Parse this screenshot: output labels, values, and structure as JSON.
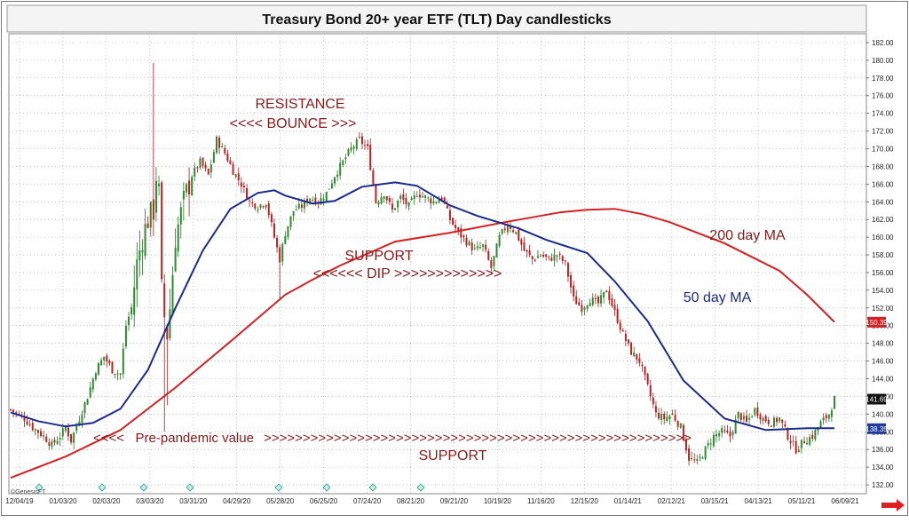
{
  "chart_data": {
    "type": "candlestick",
    "title": "Treasury Bond 20+ year ETF (TLT) Day candlesticks",
    "watermark": "©GenesisFT",
    "x_tick_labels": [
      "12/04/19",
      "01/03/20",
      "02/03/20",
      "03/03/20",
      "03/31/20",
      "04/29/20",
      "05/28/20",
      "06/25/20",
      "07/24/20",
      "08/21/20",
      "09/21/20",
      "10/19/20",
      "11/16/20",
      "12/15/20",
      "01/14/21",
      "02/12/21",
      "03/15/21",
      "04/13/21",
      "05/11/21",
      "06/09/21"
    ],
    "y_tick_labels": [
      "132.00",
      "134.00",
      "136.00",
      "138.00",
      "140.00",
      "142.00",
      "144.00",
      "146.00",
      "148.00",
      "150.00",
      "152.00",
      "154.00",
      "156.00",
      "158.00",
      "160.00",
      "162.00",
      "164.00",
      "166.00",
      "168.00",
      "170.00",
      "172.00",
      "174.00",
      "176.00",
      "178.00",
      "180.00",
      "182.00"
    ],
    "ylim": [
      131,
      183
    ],
    "grid": true,
    "price_markers": [
      {
        "label": "150.39",
        "value": 150.39,
        "color": "#d42020"
      },
      {
        "label": "141.69",
        "value": 141.69,
        "color": "#111111"
      },
      {
        "label": "138.35",
        "value": 138.35,
        "color": "#1f3a9a"
      }
    ],
    "price_path": [
      [
        0,
        140.5
      ],
      [
        5,
        139.5
      ],
      [
        8,
        138.5
      ],
      [
        12,
        137.5
      ],
      [
        15,
        136.5
      ],
      [
        18,
        137.5
      ],
      [
        20,
        138.5
      ],
      [
        22,
        137.0
      ],
      [
        25,
        139.5
      ],
      [
        28,
        142.0
      ],
      [
        31,
        145.0
      ],
      [
        34,
        146.5
      ],
      [
        37,
        145.0
      ],
      [
        40,
        144.5
      ],
      [
        42,
        150.0
      ],
      [
        44,
        152.0
      ],
      [
        46,
        157.0
      ],
      [
        48,
        160.0
      ],
      [
        50,
        162.0
      ],
      [
        52,
        163.0
      ],
      [
        53,
        167.0
      ],
      [
        54,
        165.0
      ],
      [
        55,
        154.0
      ],
      [
        56,
        151.0
      ],
      [
        57,
        149.0
      ],
      [
        58,
        152.0
      ],
      [
        60,
        160.0
      ],
      [
        63,
        164.0
      ],
      [
        66,
        167.0
      ],
      [
        69,
        168.5
      ],
      [
        72,
        167.0
      ],
      [
        75,
        171.0
      ],
      [
        78,
        169.5
      ],
      [
        81,
        167.5
      ],
      [
        84,
        166.0
      ],
      [
        87,
        164.0
      ],
      [
        90,
        163.5
      ],
      [
        93,
        164.0
      ],
      [
        96,
        160.0
      ],
      [
        98,
        157.5
      ],
      [
        100,
        160.5
      ],
      [
        103,
        163.0
      ],
      [
        106,
        163.5
      ],
      [
        109,
        164.5
      ],
      [
        112,
        164.0
      ],
      [
        115,
        165.0
      ],
      [
        118,
        167.0
      ],
      [
        121,
        168.5
      ],
      [
        124,
        170.0
      ],
      [
        127,
        171.0
      ],
      [
        130,
        170.0
      ],
      [
        133,
        164.0
      ],
      [
        136,
        165.0
      ],
      [
        139,
        163.0
      ],
      [
        142,
        164.5
      ],
      [
        145,
        163.5
      ],
      [
        148,
        165.0
      ],
      [
        151,
        164.5
      ],
      [
        154,
        164.0
      ],
      [
        157,
        164.5
      ],
      [
        160,
        162.0
      ],
      [
        163,
        160.5
      ],
      [
        166,
        159.5
      ],
      [
        169,
        158.5
      ],
      [
        172,
        159.0
      ],
      [
        175,
        156.5
      ],
      [
        178,
        160.0
      ],
      [
        181,
        161.5
      ],
      [
        184,
        160.5
      ],
      [
        187,
        158.5
      ],
      [
        190,
        157.5
      ],
      [
        193,
        158.0
      ],
      [
        196,
        157.5
      ],
      [
        199,
        158.0
      ],
      [
        202,
        157.0
      ],
      [
        205,
        153.0
      ],
      [
        208,
        152.0
      ],
      [
        211,
        153.0
      ],
      [
        214,
        152.5
      ],
      [
        217,
        154.0
      ],
      [
        220,
        151.5
      ],
      [
        223,
        149.0
      ],
      [
        226,
        147.0
      ],
      [
        229,
        146.0
      ],
      [
        232,
        143.0
      ],
      [
        235,
        140.0
      ],
      [
        238,
        139.5
      ],
      [
        241,
        140.0
      ],
      [
        244,
        138.5
      ],
      [
        247,
        135.0
      ],
      [
        250,
        134.5
      ],
      [
        253,
        136.0
      ],
      [
        256,
        137.5
      ],
      [
        259,
        138.0
      ],
      [
        262,
        137.5
      ],
      [
        265,
        140.0
      ],
      [
        268,
        139.0
      ],
      [
        271,
        140.5
      ],
      [
        274,
        139.5
      ],
      [
        277,
        139.0
      ],
      [
        280,
        139.5
      ],
      [
        283,
        137.5
      ],
      [
        286,
        136.0
      ],
      [
        289,
        137.0
      ],
      [
        292,
        137.5
      ],
      [
        295,
        139.0
      ],
      [
        298,
        140.0
      ],
      [
        300,
        141.7
      ]
    ],
    "annotations": [
      {
        "text": "RESISTANCE",
        "color": "#8b1a1a"
      },
      {
        "text": "<<<< BOUNCE >>>",
        "color": "#8b1a1a"
      },
      {
        "text": "SUPPORT",
        "color": "#8b1a1a"
      },
      {
        "text": "<<<<<< DIP >>>>>>>>>>>>>",
        "color": "#8b1a1a"
      },
      {
        "text": "<<<<   Pre-pandemic value",
        "color": "#8b1a1a"
      },
      {
        "text": ">>>>>>>>>>>>>>>>>>>>>>>>>>>>>>>>>>>>>>>>>>>>>>>>>>>>>>>",
        "color": "#8b1a1a"
      },
      {
        "text": "SUPPORT",
        "color": "#8b1a1a"
      }
    ],
    "series": [
      {
        "name": "200 day MA",
        "color": "#d42020",
        "points": [
          [
            0,
            132.8
          ],
          [
            20,
            135.2
          ],
          [
            40,
            138.2
          ],
          [
            60,
            143.0
          ],
          [
            80,
            148.2
          ],
          [
            100,
            153.5
          ],
          [
            110,
            155.2
          ],
          [
            120,
            156.8
          ],
          [
            140,
            159.5
          ],
          [
            160,
            160.5
          ],
          [
            180,
            161.7
          ],
          [
            200,
            162.8
          ],
          [
            210,
            163.1
          ],
          [
            220,
            163.2
          ],
          [
            230,
            162.6
          ],
          [
            240,
            161.7
          ],
          [
            260,
            159.3
          ],
          [
            280,
            156.2
          ],
          [
            290,
            153.5
          ],
          [
            300,
            150.4
          ]
        ]
      },
      {
        "name": "50 day MA",
        "color": "#1a2b8f",
        "points": [
          [
            0,
            140.2
          ],
          [
            10,
            139.2
          ],
          [
            20,
            138.6
          ],
          [
            30,
            139.0
          ],
          [
            40,
            140.6
          ],
          [
            50,
            145.0
          ],
          [
            60,
            152.0
          ],
          [
            70,
            158.5
          ],
          [
            80,
            163.2
          ],
          [
            90,
            165.0
          ],
          [
            96,
            165.3
          ],
          [
            100,
            164.7
          ],
          [
            110,
            163.8
          ],
          [
            118,
            164.1
          ],
          [
            128,
            165.7
          ],
          [
            140,
            166.2
          ],
          [
            148,
            165.8
          ],
          [
            160,
            163.6
          ],
          [
            170,
            162.4
          ],
          [
            185,
            161.0
          ],
          [
            195,
            159.7
          ],
          [
            210,
            158.2
          ],
          [
            220,
            155.0
          ],
          [
            232,
            150.5
          ],
          [
            245,
            143.8
          ],
          [
            260,
            139.5
          ],
          [
            275,
            138.2
          ],
          [
            290,
            138.4
          ],
          [
            300,
            138.4
          ]
        ]
      }
    ],
    "legend_labels": [
      "200 day MA",
      "50 day MA"
    ]
  }
}
